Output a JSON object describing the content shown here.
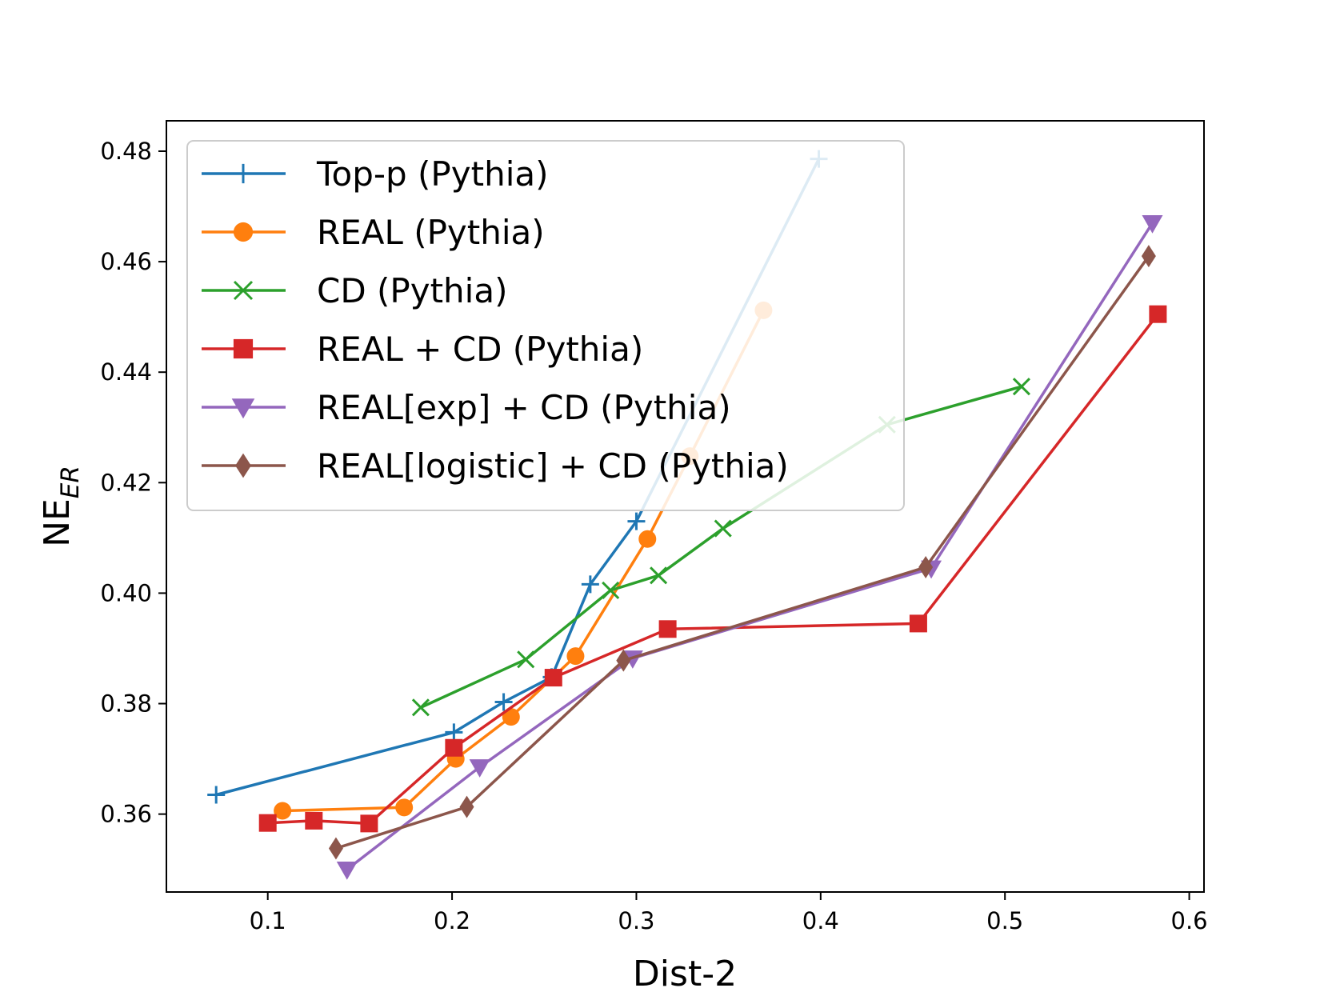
{
  "chart_data": {
    "type": "line",
    "xlabel": "Dist-2",
    "ylabel": {
      "main": "NE",
      "sub": "ER"
    },
    "xlim": [
      0.045,
      0.608
    ],
    "ylim": [
      0.3459,
      0.4855
    ],
    "xticks": [
      0.1,
      0.2,
      0.3,
      0.4,
      0.5,
      0.6
    ],
    "xtick_labels": [
      "0.1",
      "0.2",
      "0.3",
      "0.4",
      "0.5",
      "0.6"
    ],
    "yticks": [
      0.36,
      0.38,
      0.4,
      0.42,
      0.44,
      0.46,
      0.48
    ],
    "ytick_labels": [
      "0.36",
      "0.38",
      "0.40",
      "0.42",
      "0.44",
      "0.46",
      "0.48"
    ],
    "grid": false,
    "legend_position": "top-left",
    "series": [
      {
        "name": "Top-p (Pythia)",
        "color": "#1f77b4",
        "marker": "plus",
        "x": [
          0.072,
          0.201,
          0.228,
          0.254,
          0.275,
          0.3,
          0.399
        ],
        "y": [
          0.3635,
          0.3748,
          0.3803,
          0.3848,
          0.4016,
          0.413,
          0.4786
        ]
      },
      {
        "name": "REAL (Pythia)",
        "color": "#ff7f0e",
        "marker": "circle",
        "x": [
          0.108,
          0.174,
          0.202,
          0.232,
          0.267,
          0.306,
          0.329,
          0.369
        ],
        "y": [
          0.3606,
          0.3612,
          0.37,
          0.3776,
          0.3886,
          0.4098,
          0.4248,
          0.4512
        ]
      },
      {
        "name": "CD (Pythia)",
        "color": "#2ca02c",
        "marker": "x",
        "x": [
          0.183,
          0.24,
          0.286,
          0.312,
          0.347,
          0.436,
          0.509
        ],
        "y": [
          0.3793,
          0.388,
          0.4005,
          0.4032,
          0.4117,
          0.4305,
          0.4374
        ]
      },
      {
        "name": "REAL + CD (Pythia)",
        "color": "#d62728",
        "marker": "square",
        "x": [
          0.1,
          0.125,
          0.155,
          0.201,
          0.255,
          0.317,
          0.453,
          0.583
        ],
        "y": [
          0.3584,
          0.3588,
          0.3583,
          0.372,
          0.3847,
          0.3935,
          0.3945,
          0.4505
        ]
      },
      {
        "name": "REAL[exp] + CD (Pythia)",
        "color": "#9467bd",
        "marker": "triangle-down",
        "x": [
          0.143,
          0.215,
          0.298,
          0.46,
          0.58
        ],
        "y": [
          0.35,
          0.3685,
          0.3882,
          0.4045,
          0.467
        ]
      },
      {
        "name": "REAL[logistic] + CD (Pythia)",
        "color": "#8c564b",
        "marker": "diamond",
        "x": [
          0.137,
          0.208,
          0.293,
          0.457,
          0.578
        ],
        "y": [
          0.3538,
          0.3613,
          0.3878,
          0.4047,
          0.461
        ]
      }
    ]
  }
}
